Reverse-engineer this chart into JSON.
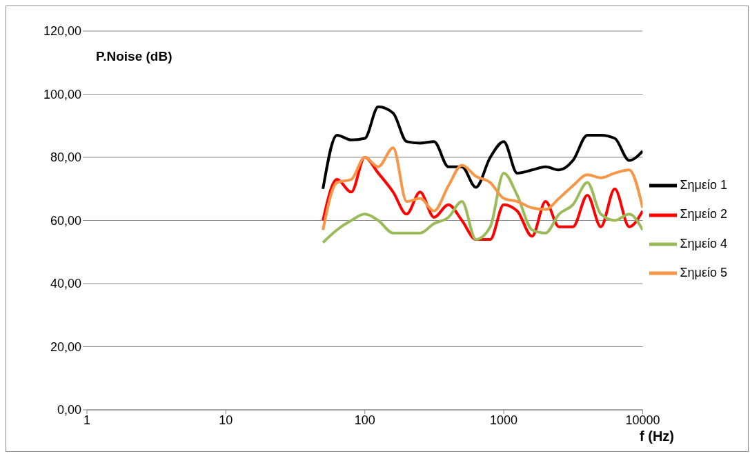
{
  "chart_data": {
    "type": "line",
    "ylabel": "P.Noise (dB)",
    "xlabel": "f (Hz)",
    "log": "x",
    "x": [
      50,
      63,
      80,
      100,
      125,
      160,
      200,
      250,
      315,
      400,
      500,
      630,
      800,
      1000,
      1250,
      1600,
      2000,
      2500,
      3150,
      4000,
      5000,
      6300,
      8000,
      10000
    ],
    "series": [
      {
        "name": "Σημείο 1",
        "color": "#000000",
        "values": [
          70,
          87,
          85.5,
          86,
          96,
          94,
          85,
          84.5,
          85,
          77,
          77,
          70.5,
          80,
          85,
          75,
          76,
          77,
          76,
          79,
          87,
          87,
          86,
          79,
          82
        ]
      },
      {
        "name": "Σημείο 2",
        "color": "#ff0000",
        "values": [
          60,
          73,
          69,
          80,
          75,
          69,
          62,
          69,
          61,
          65,
          60,
          54,
          54,
          65,
          63,
          55,
          66,
          58,
          58,
          68,
          58,
          70,
          58,
          63
        ]
      },
      {
        "name": "Σημείο 4",
        "color": "#9bbb59",
        "values": [
          53,
          57,
          60,
          62,
          60,
          56,
          56,
          56,
          59,
          61,
          66,
          54,
          58,
          75,
          68,
          57,
          56,
          62,
          65,
          72,
          62,
          60,
          62,
          57
        ]
      },
      {
        "name": "Σημείο 5",
        "color": "#f79646",
        "values": [
          57,
          72,
          73,
          80,
          77,
          83,
          66,
          67,
          63,
          71,
          77.5,
          74,
          72,
          67,
          66,
          64,
          63.5,
          67,
          71,
          74.5,
          73.5,
          75,
          76,
          64
        ]
      }
    ],
    "xlim": [
      1,
      10000
    ],
    "xticks": [
      1,
      10,
      100,
      1000,
      10000
    ],
    "ylim": [
      0,
      120
    ],
    "yticks": [
      {
        "value": 0,
        "label": "0,00"
      },
      {
        "value": 20,
        "label": "20,00"
      },
      {
        "value": 40,
        "label": "40,00"
      },
      {
        "value": 60,
        "label": "60,00"
      },
      {
        "value": 80,
        "label": "80,00"
      },
      {
        "value": 100,
        "label": "100,00"
      },
      {
        "value": 120,
        "label": "120,00"
      }
    ],
    "grid": "y",
    "legend": "right",
    "marker": "none",
    "line_style": "solid"
  }
}
